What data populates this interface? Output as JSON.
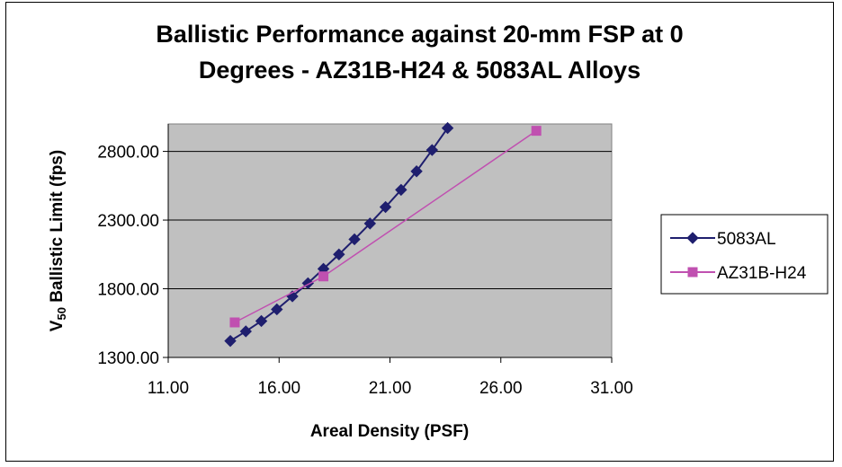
{
  "chart_data": {
    "type": "line",
    "title_line1": "Ballistic Performance against 20-mm FSP at 0",
    "title_line2": "Degrees - AZ31B-H24 & 5083AL Alloys",
    "xlabel": "Areal Density (PSF)",
    "ylabel_main": "V",
    "ylabel_sub": "50",
    "ylabel_rest": " Ballistic Limit (fps)",
    "xlim": [
      11,
      31
    ],
    "ylim": [
      1300,
      3000
    ],
    "x_ticks": [
      11,
      16,
      21,
      26,
      31
    ],
    "x_tick_labels": [
      "11.00",
      "16.00",
      "21.00",
      "26.00",
      "31.00"
    ],
    "y_ticks": [
      1300,
      1800,
      2300,
      2800
    ],
    "y_tick_labels": [
      "1300.00",
      "1800.00",
      "2300.00",
      "2800.00"
    ],
    "grid": "horizontal",
    "plot_background": "#c0c0c0",
    "legend_position": "right",
    "series": [
      {
        "name": "5083AL",
        "color": "#1f1f6e",
        "marker": "diamond",
        "points": [
          [
            13.8,
            1420
          ],
          [
            14.5,
            1490
          ],
          [
            15.2,
            1565
          ],
          [
            15.9,
            1650
          ],
          [
            16.6,
            1745
          ],
          [
            17.3,
            1840
          ],
          [
            18.0,
            1945
          ],
          [
            18.7,
            2050
          ],
          [
            19.4,
            2160
          ],
          [
            20.1,
            2275
          ],
          [
            20.8,
            2395
          ],
          [
            21.5,
            2520
          ],
          [
            22.2,
            2655
          ],
          [
            22.9,
            2810
          ],
          [
            23.6,
            2970
          ]
        ]
      },
      {
        "name": "AZ31B-H24",
        "color": "#c050b0",
        "marker": "square",
        "points": [
          [
            14.0,
            1555
          ],
          [
            18.0,
            1890
          ],
          [
            27.6,
            2950
          ]
        ]
      }
    ]
  }
}
